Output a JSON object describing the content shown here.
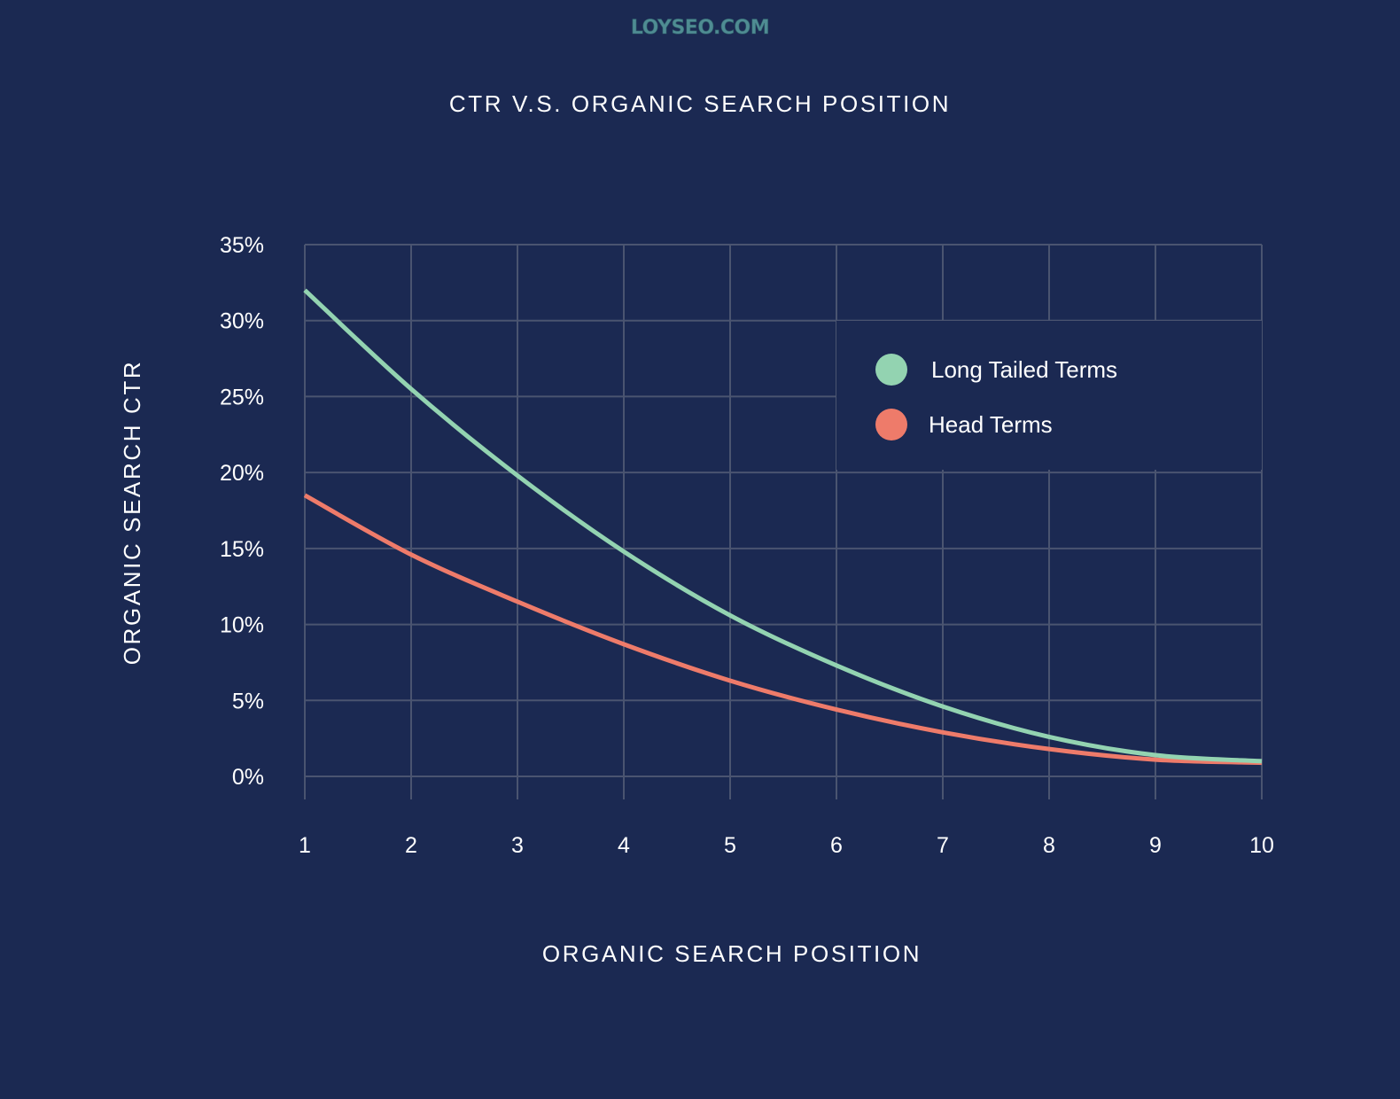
{
  "watermark": "LOYSEO.COM",
  "chart_data": {
    "type": "line",
    "title": "CTR V.S. ORGANIC SEARCH POSITION",
    "xlabel": "ORGANIC SEARCH POSITION",
    "ylabel": "ORGANIC SEARCH CTR",
    "x": [
      1,
      2,
      3,
      4,
      5,
      6,
      7,
      8,
      9,
      10
    ],
    "x_tick_labels": [
      "1",
      "2",
      "3",
      "4",
      "5",
      "6",
      "7",
      "8",
      "9",
      "10"
    ],
    "y_ticks": [
      0,
      5,
      10,
      15,
      20,
      25,
      30,
      35
    ],
    "y_tick_labels": [
      "0%",
      "5%",
      "10%",
      "15%",
      "20%",
      "25%",
      "30%",
      "35%"
    ],
    "xlim": [
      1,
      10
    ],
    "ylim": [
      0,
      35
    ],
    "grid": true,
    "legend_position": "top-right",
    "series": [
      {
        "name": "Long Tailed Terms",
        "color": "#93d3b1",
        "values": [
          32.0,
          25.5,
          19.8,
          14.8,
          10.6,
          7.3,
          4.6,
          2.6,
          1.4,
          1.0
        ]
      },
      {
        "name": "Head Terms",
        "color": "#ee7b6a",
        "values": [
          18.5,
          14.6,
          11.5,
          8.7,
          6.3,
          4.4,
          2.9,
          1.8,
          1.1,
          0.9
        ]
      }
    ]
  }
}
